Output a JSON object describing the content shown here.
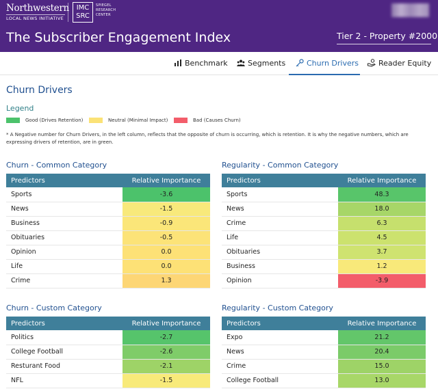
{
  "header": {
    "org_name": "Northwestern",
    "org_sub": "LOCAL NEWS INITIATIVE",
    "imc_line1": "IMC",
    "imc_line2": "SRC",
    "imc_text": "SPIEGEL RESEARCH CENTER",
    "title": "The Subscriber Engagement Index",
    "tier_select": "Tier 2 - Property #2000 -"
  },
  "nav": {
    "tabs": [
      {
        "label": "Benchmark",
        "icon": "chart-icon"
      },
      {
        "label": "Segments",
        "icon": "people-icon"
      },
      {
        "label": "Churn Drivers",
        "icon": "key-icon"
      },
      {
        "label": "Reader Equity",
        "icon": "hand-coin-icon"
      }
    ],
    "active": "Churn Drivers"
  },
  "page": {
    "section_title": "Churn Drivers",
    "legend_title": "Legend",
    "legend": [
      {
        "label": "Good (Drives Retention)",
        "color": "#4cc26b"
      },
      {
        "label": "Neutral (Minimal Impact)",
        "color": "#fbe276"
      },
      {
        "label": "Bad (Causes Churn)",
        "color": "#f35d6a"
      }
    ],
    "note": "* A Negative number for Churn Drivers, in the left column, reflects that the opposite of churn is occurring, which is retention. It is why the negative numbers, which are expressing drivers of retention, are in green."
  },
  "tables": [
    {
      "title": "Churn - Common Category",
      "col1": "Predictors",
      "col2": "Relative Importance",
      "rows": [
        {
          "predictor": "Sports",
          "value": "-3.6",
          "color": "#4cc26b"
        },
        {
          "predictor": "News",
          "value": "-1.5",
          "color": "#f8e97b"
        },
        {
          "predictor": "Business",
          "value": "-0.9",
          "color": "#fbe679"
        },
        {
          "predictor": "Obituaries",
          "value": "-0.5",
          "color": "#fce378"
        },
        {
          "predictor": "Opinion",
          "value": "0.0",
          "color": "#fde176"
        },
        {
          "predictor": "Life",
          "value": "0.0",
          "color": "#fde176"
        },
        {
          "predictor": "Crime",
          "value": "1.3",
          "color": "#fdd675"
        }
      ]
    },
    {
      "title": "Regularity - Common Category",
      "col1": "Predictors",
      "col2": "Relative Importance",
      "rows": [
        {
          "predictor": "Sports",
          "value": "48.3",
          "color": "#58c56a"
        },
        {
          "predictor": "News",
          "value": "18.0",
          "color": "#a7d668"
        },
        {
          "predictor": "Crime",
          "value": "6.3",
          "color": "#c6e06d"
        },
        {
          "predictor": "Life",
          "value": "4.5",
          "color": "#cce26e"
        },
        {
          "predictor": "Obituaries",
          "value": "3.7",
          "color": "#cfe370"
        },
        {
          "predictor": "Business",
          "value": "1.2",
          "color": "#f8e97a"
        },
        {
          "predictor": "Opinion",
          "value": "-3.9",
          "color": "#f35d6a"
        }
      ]
    },
    {
      "title": "Churn - Custom Category",
      "col1": "Predictors",
      "col2": "Relative Importance",
      "rows": [
        {
          "predictor": "Politics",
          "value": "-2.7",
          "color": "#56c46b"
        },
        {
          "predictor": "College Football",
          "value": "-2.6",
          "color": "#7fcc69"
        },
        {
          "predictor": "Resturant Food",
          "value": "-2.1",
          "color": "#9ed367"
        },
        {
          "predictor": "NFL",
          "value": "-1.5",
          "color": "#f8ea7a"
        }
      ]
    },
    {
      "title": "Regularity - Custom Category",
      "col1": "Predictors",
      "col2": "Relative Importance",
      "rows": [
        {
          "predictor": "Expo",
          "value": "21.2",
          "color": "#63c66a"
        },
        {
          "predictor": "News",
          "value": "20.4",
          "color": "#7bcb69"
        },
        {
          "predictor": "Crime",
          "value": "15.0",
          "color": "#9ed367"
        },
        {
          "predictor": "College Football",
          "value": "13.0",
          "color": "#a8d768"
        }
      ]
    }
  ]
}
